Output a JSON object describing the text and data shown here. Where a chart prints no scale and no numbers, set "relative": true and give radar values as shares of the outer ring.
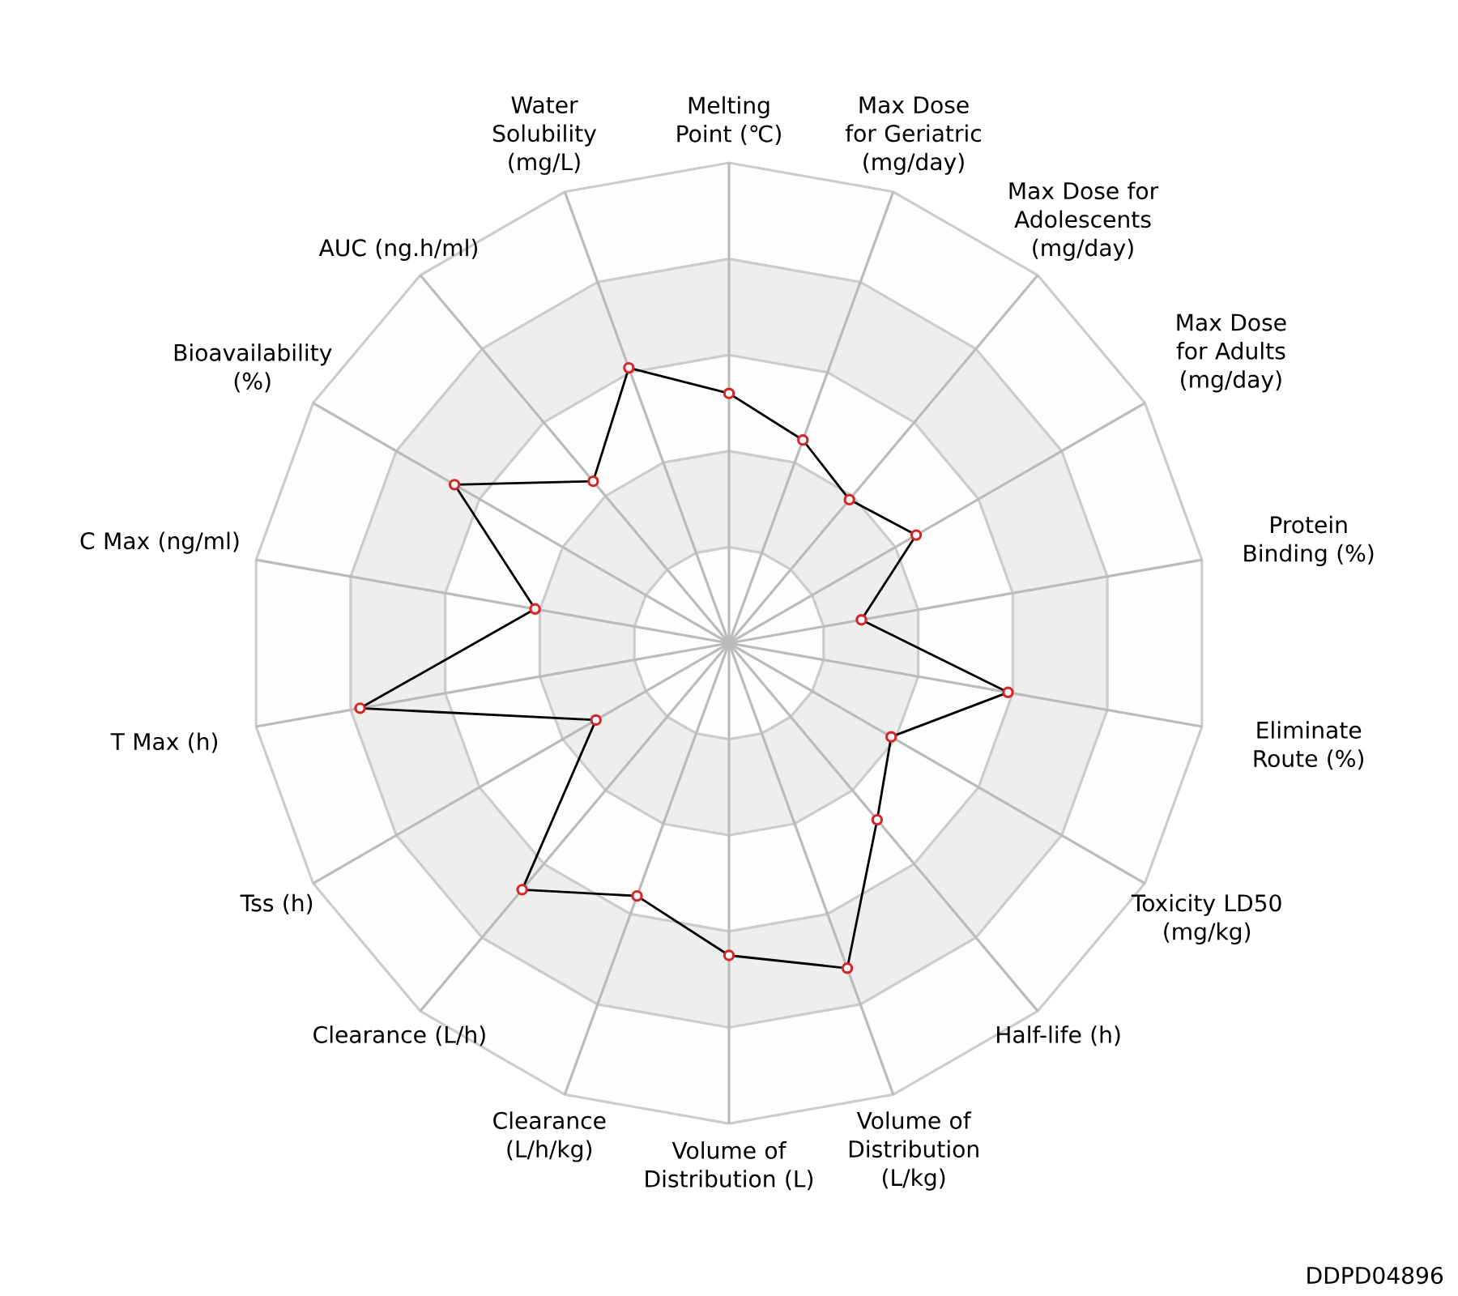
{
  "chart_data": {
    "type": "radar",
    "relative": true,
    "marker": "circle",
    "annotations": [
      "DDPD04896"
    ],
    "categories": [
      "Melting Point (℃)",
      "Max Dose for Geriatric (mg/day)",
      "Max Dose for Adolescents (mg/day)",
      "Max Dose for Adults (mg/day)",
      "Protein Binding (%)",
      "Eliminate Route (%)",
      "Toxicity LD50 (mg/kg)",
      "Half-life (h)",
      "Volume of Distribution (L/kg)",
      "Volume of Distribution (L)",
      "Clearance (L/h/kg)",
      "Clearance (L/h)",
      "Tss (h)",
      "T Max (h)",
      "C Max (ng/ml)",
      "Bioavailability (%)",
      "AUC (ng.h/ml)",
      "Water Solubility (mg/L)"
    ],
    "series": [
      {
        "color": "#000000",
        "values": [
          0.52,
          0.45,
          0.39,
          0.45,
          0.28,
          0.59,
          0.39,
          0.48,
          0.72,
          0.65,
          0.56,
          0.67,
          0.32,
          0.78,
          0.41,
          0.66,
          0.44,
          0.61
        ]
      }
    ]
  }
}
